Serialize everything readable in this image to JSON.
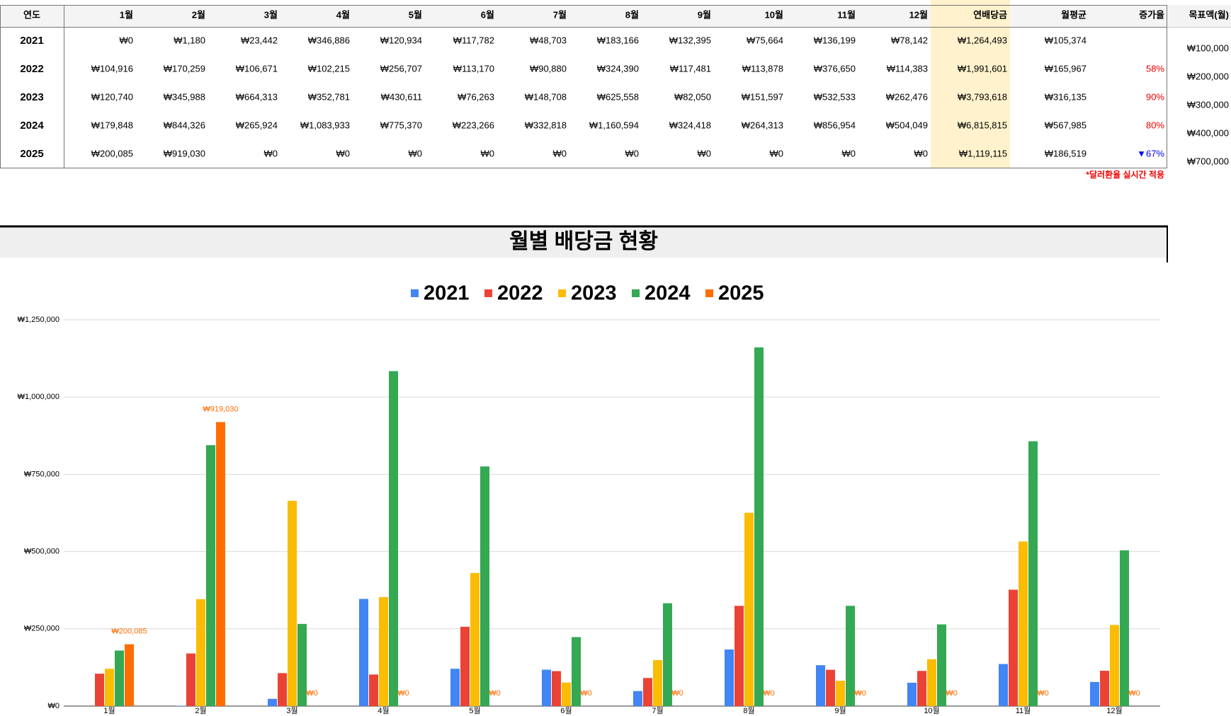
{
  "table": {
    "headers": [
      "연도",
      "1월",
      "2월",
      "3월",
      "4월",
      "5월",
      "6월",
      "7월",
      "8월",
      "9월",
      "10월",
      "11월",
      "12월",
      "연배당금",
      "월평균",
      "증가율"
    ],
    "rows": [
      [
        "2021",
        "₩0",
        "₩1,180",
        "₩23,442",
        "₩346,886",
        "₩120,934",
        "₩117,782",
        "₩48,703",
        "₩183,166",
        "₩132,395",
        "₩75,664",
        "₩136,199",
        "₩78,142",
        "₩1,264,493",
        "₩105,374",
        null
      ],
      [
        "2022",
        "₩104,916",
        "₩170,259",
        "₩106,671",
        "₩102,215",
        "₩256,707",
        "₩113,170",
        "₩90,880",
        "₩324,390",
        "₩117,481",
        "₩113,878",
        "₩376,650",
        "₩114,383",
        "₩1,991,601",
        "₩165,967",
        "58%"
      ],
      [
        "2023",
        "₩120,740",
        "₩345,988",
        "₩664,313",
        "₩352,781",
        "₩430,611",
        "₩76,263",
        "₩148,708",
        "₩625,558",
        "₩82,050",
        "₩151,597",
        "₩532,533",
        "₩262,476",
        "₩3,793,618",
        "₩316,135",
        "90%"
      ],
      [
        "2024",
        "₩179,848",
        "₩844,326",
        "₩265,924",
        "₩1,083,933",
        "₩775,370",
        "₩223,266",
        "₩332,818",
        "₩1,160,594",
        "₩324,418",
        "₩264,313",
        "₩856,954",
        "₩504,049",
        "₩6,815,815",
        "₩567,985",
        "80%"
      ],
      [
        "2025",
        "₩200,085",
        "₩919,030",
        "₩0",
        "₩0",
        "₩0",
        "₩0",
        "₩0",
        "₩0",
        "₩0",
        "₩0",
        "₩0",
        "₩0",
        "₩1,119,115",
        "₩186,519",
        "▼67%"
      ]
    ],
    "note": "*달러환율 실시간 적용"
  },
  "targets": {
    "header": "목표액(월)",
    "values": [
      "₩100,000",
      "₩200,000",
      "₩300,000",
      "₩400,000",
      "₩700,000"
    ]
  },
  "chart_data": {
    "type": "bar",
    "title": "월별 배당금 현황",
    "categories": [
      "1월",
      "2월",
      "3월",
      "4월",
      "5월",
      "6월",
      "7월",
      "8월",
      "9월",
      "10월",
      "11월",
      "12월"
    ],
    "series": [
      {
        "name": "2021",
        "color": "#4285f4",
        "values": [
          0,
          1180,
          23442,
          346886,
          120934,
          117782,
          48703,
          183166,
          132395,
          75664,
          136199,
          78142
        ]
      },
      {
        "name": "2022",
        "color": "#ea4335",
        "values": [
          104916,
          170259,
          106671,
          102215,
          256707,
          113170,
          90880,
          324390,
          117481,
          113878,
          376650,
          114383
        ]
      },
      {
        "name": "2023",
        "color": "#fbbc04",
        "values": [
          120740,
          345988,
          664313,
          352781,
          430611,
          76263,
          148708,
          625558,
          82050,
          151597,
          532533,
          262476
        ]
      },
      {
        "name": "2024",
        "color": "#34a853",
        "values": [
          179848,
          844326,
          265924,
          1083933,
          775370,
          223266,
          332818,
          1160594,
          324418,
          264313,
          856954,
          504049
        ]
      },
      {
        "name": "2025",
        "color": "#ff6d01",
        "values": [
          200085,
          919030,
          0,
          0,
          0,
          0,
          0,
          0,
          0,
          0,
          0,
          0
        ],
        "value_labels": [
          "₩200,085",
          "₩919,030",
          "₩0",
          "₩0",
          "₩0",
          "₩0",
          "₩0",
          "₩0",
          "₩0",
          "₩0",
          "₩0",
          "₩0"
        ]
      }
    ],
    "ylim": [
      0,
      1250000
    ],
    "yticks": [
      {
        "value": 0,
        "label": "₩0"
      },
      {
        "value": 250000,
        "label": "₩250,000"
      },
      {
        "value": 500000,
        "label": "₩500,000"
      },
      {
        "value": 750000,
        "label": "₩750,000"
      },
      {
        "value": 1000000,
        "label": "₩1,000,000"
      },
      {
        "value": 1250000,
        "label": "₩1,250,000"
      }
    ],
    "grid": true
  }
}
